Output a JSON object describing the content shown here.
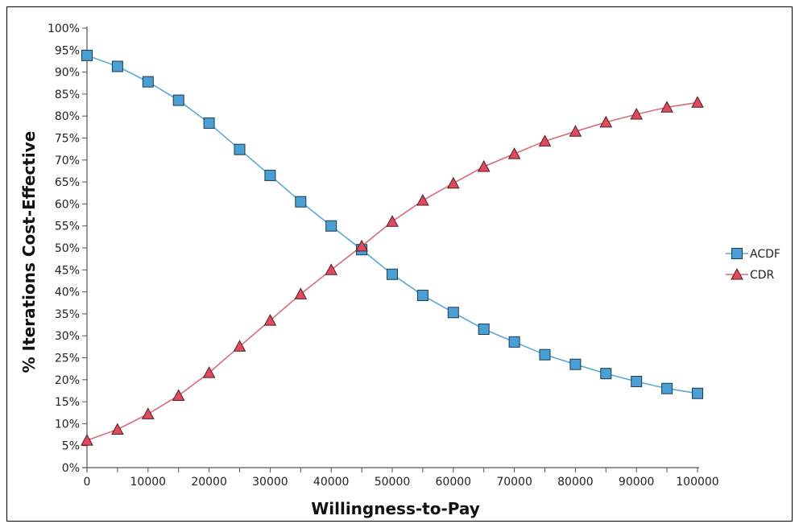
{
  "chart_data": {
    "type": "line",
    "title": "",
    "xlabel": "Willingness-to-Pay",
    "ylabel": "% Iterations Cost-Effective",
    "xlim": [
      0,
      100000
    ],
    "ylim": [
      0,
      100
    ],
    "x_ticks": [
      0,
      10000,
      20000,
      30000,
      40000,
      50000,
      60000,
      70000,
      80000,
      90000,
      100000
    ],
    "x_tick_labels": [
      "0",
      "10000",
      "20000",
      "30000",
      "40000",
      "50000",
      "60000",
      "70000",
      "80000",
      "90000",
      "100000"
    ],
    "y_ticks": [
      0,
      5,
      10,
      15,
      20,
      25,
      30,
      35,
      40,
      45,
      50,
      55,
      60,
      65,
      70,
      75,
      80,
      85,
      90,
      95,
      100
    ],
    "y_tick_labels": [
      "0%",
      "5%",
      "10%",
      "15%",
      "20%",
      "25%",
      "30%",
      "35%",
      "40%",
      "45%",
      "50%",
      "55%",
      "60%",
      "65%",
      "70%",
      "75%",
      "80%",
      "85%",
      "90%",
      "95%",
      "100%"
    ],
    "grid": false,
    "legend_position": "right",
    "x": [
      0,
      5000,
      10000,
      15000,
      20000,
      25000,
      30000,
      35000,
      40000,
      45000,
      50000,
      55000,
      60000,
      65000,
      70000,
      75000,
      80000,
      85000,
      90000,
      95000,
      100000
    ],
    "series": [
      {
        "name": "ACDF",
        "marker": "square",
        "line_color": "#5aa9d6",
        "marker_color": "#4a9fd4",
        "values": [
          93.8,
          91.3,
          87.8,
          83.6,
          78.4,
          72.4,
          66.5,
          60.5,
          55.0,
          49.6,
          44.0,
          39.2,
          35.3,
          31.5,
          28.6,
          25.7,
          23.5,
          21.4,
          19.6,
          18.0,
          16.9
        ]
      },
      {
        "name": "CDR",
        "marker": "triangle",
        "line_color": "#d96b7b",
        "marker_color": "#e04a5c",
        "values": [
          6.2,
          8.7,
          12.2,
          16.4,
          21.6,
          27.6,
          33.5,
          39.5,
          45.0,
          50.4,
          56.0,
          60.8,
          64.7,
          68.5,
          71.4,
          74.3,
          76.5,
          78.6,
          80.4,
          82.0,
          83.1
        ]
      }
    ]
  }
}
